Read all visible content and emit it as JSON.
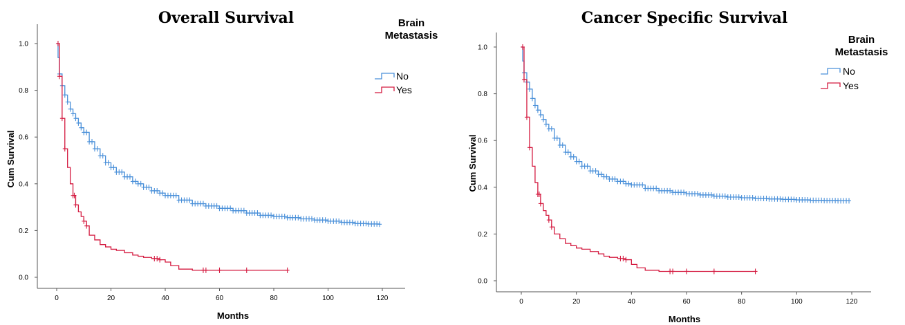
{
  "chart_data": [
    {
      "type": "line",
      "subtype": "kaplan-meier-step",
      "title": "Overall Survival",
      "xlabel": "Months",
      "ylabel": "Cum Survival",
      "xlim": [
        0,
        120
      ],
      "ylim": [
        0,
        1.0
      ],
      "xticks": [
        "0",
        "20",
        "40",
        "60",
        "80",
        "100",
        "120"
      ],
      "yticks": [
        "0.0",
        "0.2",
        "0.4",
        "0.6",
        "0.8",
        "1.0"
      ],
      "grid": false,
      "legend": {
        "title": "Brain Metastasis",
        "position": "top-right"
      },
      "series": [
        {
          "name": "No",
          "color": "#4a90d9",
          "x": [
            0,
            0.5,
            1,
            2,
            3,
            4,
            5,
            6,
            7,
            8,
            9,
            10,
            12,
            14,
            16,
            18,
            20,
            22,
            25,
            28,
            30,
            32,
            35,
            38,
            40,
            45,
            50,
            55,
            60,
            65,
            70,
            75,
            80,
            85,
            90,
            95,
            100,
            105,
            110,
            115,
            119
          ],
          "y": [
            1.0,
            0.94,
            0.87,
            0.82,
            0.78,
            0.75,
            0.72,
            0.7,
            0.68,
            0.66,
            0.64,
            0.62,
            0.58,
            0.55,
            0.52,
            0.49,
            0.47,
            0.45,
            0.43,
            0.41,
            0.4,
            0.385,
            0.37,
            0.36,
            0.35,
            0.33,
            0.315,
            0.305,
            0.295,
            0.285,
            0.275,
            0.265,
            0.26,
            0.255,
            0.25,
            0.245,
            0.24,
            0.235,
            0.23,
            0.228,
            0.227
          ],
          "censored": [
            1,
            2,
            3,
            4,
            5,
            6,
            7,
            8,
            9,
            10,
            11,
            12,
            13,
            14,
            15,
            16,
            17,
            18,
            19,
            20,
            21,
            22,
            23,
            24,
            25,
            26,
            27,
            28,
            29,
            30,
            31,
            32,
            33,
            34,
            35,
            36,
            37,
            38,
            39,
            40,
            41,
            42,
            43,
            44,
            45,
            46,
            47,
            48,
            49,
            50,
            51,
            52,
            53,
            54,
            55,
            56,
            57,
            58,
            59,
            60,
            61,
            62,
            63,
            64,
            65,
            66,
            67,
            68,
            69,
            70,
            71,
            72,
            73,
            74,
            75,
            76,
            77,
            78,
            79,
            80,
            81,
            82,
            83,
            84,
            85,
            86,
            87,
            88,
            89,
            90,
            91,
            92,
            93,
            94,
            95,
            96,
            97,
            98,
            99,
            100,
            101,
            102,
            103,
            104,
            105,
            106,
            107,
            108,
            109,
            110,
            111,
            112,
            113,
            114,
            115,
            116,
            117,
            118,
            119
          ]
        },
        {
          "name": "Yes",
          "color": "#d4193f",
          "x": [
            0,
            1,
            2,
            3,
            4,
            5,
            6,
            7,
            8,
            9,
            10,
            11,
            12,
            14,
            16,
            18,
            20,
            22,
            25,
            28,
            30,
            32,
            35,
            38,
            40,
            42,
            45,
            50,
            55,
            60,
            70,
            85
          ],
          "y": [
            1.0,
            0.86,
            0.68,
            0.55,
            0.47,
            0.4,
            0.35,
            0.31,
            0.28,
            0.26,
            0.24,
            0.22,
            0.18,
            0.16,
            0.14,
            0.13,
            0.12,
            0.115,
            0.105,
            0.095,
            0.09,
            0.085,
            0.08,
            0.075,
            0.065,
            0.05,
            0.035,
            0.03,
            0.03,
            0.03,
            0.03,
            0.03
          ],
          "censored": [
            0.5,
            1,
            2,
            3,
            6,
            6.5,
            7,
            10,
            11,
            36,
            37,
            38,
            54,
            55,
            60,
            70,
            85
          ]
        }
      ]
    },
    {
      "type": "line",
      "subtype": "kaplan-meier-step",
      "title": "Cancer Specific Survival",
      "xlabel": "Months",
      "ylabel": "Cum Survival",
      "xlim": [
        0,
        120
      ],
      "ylim": [
        0,
        1.0
      ],
      "xticks": [
        "0",
        "20",
        "40",
        "60",
        "80",
        "100",
        "120"
      ],
      "yticks": [
        "0.0",
        "0.2",
        "0.4",
        "0.6",
        "0.8",
        "1.0"
      ],
      "grid": false,
      "legend": {
        "title": "Brain Metastasis",
        "position": "top-right"
      },
      "series": [
        {
          "name": "No",
          "color": "#4a90d9",
          "x": [
            0,
            0.5,
            1,
            2,
            3,
            4,
            5,
            6,
            7,
            8,
            9,
            10,
            12,
            14,
            16,
            18,
            20,
            22,
            25,
            28,
            30,
            32,
            35,
            38,
            40,
            45,
            50,
            55,
            60,
            65,
            70,
            75,
            80,
            85,
            90,
            95,
            100,
            105,
            110,
            115,
            119
          ],
          "y": [
            1.0,
            0.94,
            0.89,
            0.85,
            0.82,
            0.78,
            0.75,
            0.73,
            0.71,
            0.69,
            0.67,
            0.65,
            0.61,
            0.58,
            0.55,
            0.53,
            0.51,
            0.49,
            0.47,
            0.455,
            0.445,
            0.435,
            0.425,
            0.415,
            0.41,
            0.395,
            0.385,
            0.378,
            0.372,
            0.367,
            0.362,
            0.358,
            0.355,
            0.352,
            0.35,
            0.348,
            0.346,
            0.344,
            0.343,
            0.342,
            0.342
          ],
          "censored": [
            1,
            2,
            3,
            4,
            5,
            6,
            7,
            8,
            9,
            10,
            11,
            12,
            13,
            14,
            15,
            16,
            17,
            18,
            19,
            20,
            21,
            22,
            23,
            24,
            25,
            26,
            27,
            28,
            29,
            30,
            31,
            32,
            33,
            34,
            35,
            36,
            37,
            38,
            39,
            40,
            41,
            42,
            43,
            44,
            45,
            46,
            47,
            48,
            49,
            50,
            51,
            52,
            53,
            54,
            55,
            56,
            57,
            58,
            59,
            60,
            61,
            62,
            63,
            64,
            65,
            66,
            67,
            68,
            69,
            70,
            71,
            72,
            73,
            74,
            75,
            76,
            77,
            78,
            79,
            80,
            81,
            82,
            83,
            84,
            85,
            86,
            87,
            88,
            89,
            90,
            91,
            92,
            93,
            94,
            95,
            96,
            97,
            98,
            99,
            100,
            101,
            102,
            103,
            104,
            105,
            106,
            107,
            108,
            109,
            110,
            111,
            112,
            113,
            114,
            115,
            116,
            117,
            118,
            119
          ]
        },
        {
          "name": "Yes",
          "color": "#d4193f",
          "x": [
            0,
            1,
            2,
            3,
            4,
            5,
            6,
            7,
            8,
            9,
            10,
            11,
            12,
            14,
            16,
            18,
            20,
            22,
            25,
            28,
            30,
            32,
            35,
            38,
            40,
            42,
            45,
            50,
            55,
            60,
            70,
            85
          ],
          "y": [
            1.0,
            0.86,
            0.7,
            0.57,
            0.49,
            0.42,
            0.37,
            0.33,
            0.3,
            0.28,
            0.26,
            0.23,
            0.2,
            0.18,
            0.16,
            0.15,
            0.14,
            0.135,
            0.125,
            0.115,
            0.105,
            0.1,
            0.095,
            0.09,
            0.07,
            0.055,
            0.045,
            0.04,
            0.04,
            0.04,
            0.04,
            0.04
          ],
          "censored": [
            0.5,
            1,
            2,
            3,
            6,
            6.5,
            7,
            10,
            11,
            36,
            37,
            38,
            54,
            55,
            60,
            70,
            85
          ]
        }
      ]
    }
  ]
}
